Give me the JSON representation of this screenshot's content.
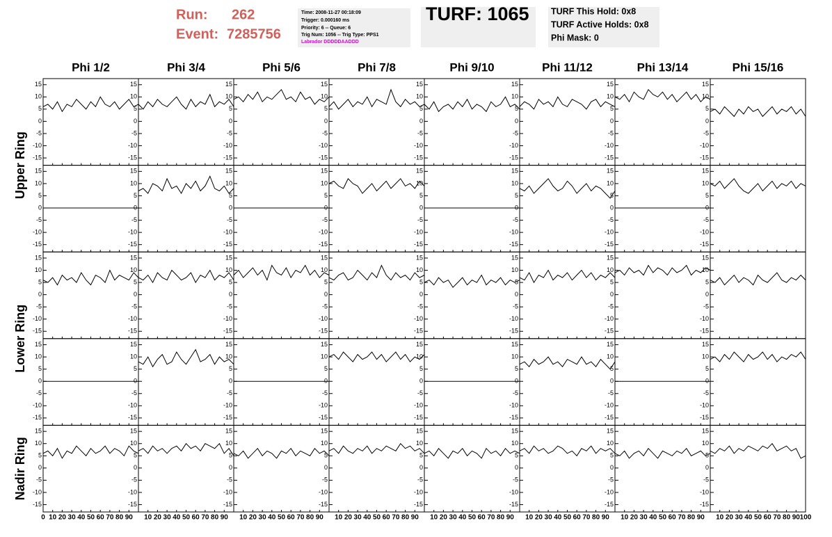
{
  "header": {
    "run_label": "Run:",
    "run": "262",
    "event_label": "Event:",
    "event": "7285756",
    "info": [
      "Time: 2008-11-27 00:18:09",
      "Trigger: 0.000160 ms",
      "Priority: 6 -- Queue: 6",
      "Trig Num: 1056 -- Trig Type: PPS1"
    ],
    "labrador": "Labrador DDDDDAADDD",
    "turf": "TURF: 1065",
    "turf_info": [
      "TURF This Hold: 0x8",
      "TURF Active Holds: 0x8",
      "Phi Mask: 0"
    ]
  },
  "chart_data": {
    "type": "line",
    "color": "#000000",
    "columns": [
      "Phi 1/2",
      "Phi 3/4",
      "Phi 5/6",
      "Phi 7/8",
      "Phi 9/10",
      "Phi 11/12",
      "Phi 13/14",
      "Phi 15/16"
    ],
    "rings": [
      "Upper Ring",
      "Lower Ring",
      "Nadir Ring"
    ],
    "x": [
      0,
      5,
      10,
      15,
      20,
      25,
      30,
      35,
      40,
      45,
      50,
      55,
      60,
      65,
      70,
      75,
      80,
      85,
      90,
      95,
      100
    ],
    "xlim": [
      0,
      100
    ],
    "xticks": [
      0,
      10,
      20,
      30,
      40,
      50,
      60,
      70,
      80,
      90,
      100
    ],
    "ylim": [
      -18,
      17.5
    ],
    "yticks": [
      -15,
      -10,
      -5,
      0,
      5,
      10,
      15
    ],
    "panels": [
      [
        [
          6,
          7,
          5,
          8,
          4,
          7,
          6,
          9,
          7,
          5,
          8,
          6,
          10,
          7,
          6,
          8,
          5,
          7,
          9,
          6,
          7
        ],
        [
          7,
          5,
          8,
          6,
          9,
          7,
          6,
          8,
          10,
          7,
          5,
          9,
          6,
          8,
          7,
          11,
          6,
          8,
          7,
          9,
          6
        ],
        [
          9,
          10,
          8,
          11,
          9,
          12,
          8,
          10,
          9,
          11,
          13,
          9,
          10,
          8,
          12,
          9,
          10,
          7,
          9,
          8,
          10
        ],
        [
          6,
          8,
          5,
          7,
          9,
          6,
          8,
          7,
          10,
          6,
          9,
          8,
          7,
          13,
          8,
          6,
          9,
          7,
          8,
          6,
          7
        ],
        [
          7,
          5,
          8,
          4,
          6,
          7,
          5,
          8,
          6,
          9,
          5,
          7,
          6,
          4,
          8,
          6,
          7,
          10,
          6,
          7,
          5
        ],
        [
          6,
          8,
          7,
          5,
          9,
          7,
          8,
          6,
          10,
          7,
          6,
          9,
          8,
          7,
          5,
          8,
          9,
          6,
          8,
          7,
          6
        ],
        [
          10,
          9,
          11,
          8,
          12,
          10,
          9,
          13,
          11,
          10,
          12,
          9,
          11,
          8,
          10,
          12,
          9,
          11,
          8,
          10,
          9
        ],
        [
          4,
          5,
          3,
          6,
          4,
          2,
          5,
          3,
          6,
          4,
          5,
          2,
          4,
          6,
          3,
          5,
          4,
          6,
          3,
          5,
          2
        ]
      ],
      [
        [
          0,
          0,
          0,
          0,
          0,
          0,
          0,
          0,
          0,
          0,
          0,
          0,
          0,
          0,
          0,
          0,
          0,
          0,
          0,
          0,
          0
        ],
        [
          7,
          8,
          6,
          10,
          9,
          7,
          12,
          8,
          9,
          6,
          10,
          8,
          11,
          7,
          9,
          13,
          8,
          7,
          9,
          6,
          8
        ],
        [
          0,
          0,
          0,
          0,
          0,
          0,
          0,
          0,
          0,
          0,
          0,
          0,
          0,
          0,
          0,
          0,
          0,
          0,
          0,
          0,
          0
        ],
        [
          10,
          11,
          9,
          8,
          12,
          10,
          9,
          6,
          8,
          10,
          7,
          9,
          11,
          8,
          10,
          12,
          9,
          10,
          8,
          11,
          9
        ],
        [
          0,
          0,
          0,
          0,
          0,
          0,
          0,
          0,
          0,
          0,
          0,
          0,
          0,
          0,
          0,
          0,
          0,
          0,
          0,
          0,
          0
        ],
        [
          8,
          7,
          9,
          6,
          8,
          10,
          12,
          9,
          7,
          8,
          11,
          9,
          6,
          8,
          10,
          7,
          9,
          8,
          6,
          4,
          7
        ],
        [
          0,
          0,
          0,
          0,
          0,
          0,
          0,
          0,
          0,
          0,
          0,
          0,
          0,
          0,
          0,
          0,
          0,
          0,
          0,
          0,
          0
        ],
        [
          10,
          9,
          11,
          8,
          10,
          12,
          9,
          7,
          6,
          8,
          10,
          7,
          9,
          11,
          8,
          10,
          9,
          11,
          8,
          10,
          9
        ]
      ],
      [
        [
          6,
          5,
          7,
          4,
          8,
          6,
          7,
          5,
          9,
          6,
          4,
          8,
          7,
          5,
          10,
          6,
          8,
          7,
          6,
          9,
          7
        ],
        [
          7,
          6,
          8,
          5,
          9,
          7,
          6,
          10,
          8,
          6,
          7,
          9,
          5,
          8,
          7,
          10,
          6,
          8,
          7,
          9,
          6
        ],
        [
          8,
          10,
          7,
          9,
          11,
          8,
          10,
          6,
          12,
          9,
          8,
          11,
          7,
          10,
          9,
          12,
          8,
          10,
          7,
          9,
          8
        ],
        [
          7,
          6,
          8,
          9,
          6,
          7,
          10,
          8,
          6,
          9,
          7,
          12,
          8,
          6,
          9,
          7,
          8,
          6,
          9,
          7,
          8
        ],
        [
          5,
          6,
          4,
          7,
          5,
          6,
          3,
          5,
          7,
          4,
          6,
          5,
          8,
          4,
          6,
          5,
          7,
          4,
          6,
          5,
          6
        ],
        [
          7,
          6,
          9,
          5,
          8,
          7,
          10,
          6,
          8,
          7,
          9,
          6,
          8,
          10,
          7,
          9,
          6,
          8,
          7,
          9,
          7
        ],
        [
          9,
          10,
          8,
          11,
          9,
          10,
          8,
          12,
          9,
          11,
          10,
          8,
          11,
          9,
          10,
          12,
          8,
          10,
          9,
          11,
          10
        ],
        [
          6,
          5,
          7,
          4,
          6,
          8,
          5,
          7,
          6,
          4,
          8,
          6,
          5,
          7,
          9,
          6,
          5,
          7,
          6,
          8,
          6
        ]
      ],
      [
        [
          0,
          0,
          0,
          0,
          0,
          0,
          0,
          0,
          0,
          0,
          0,
          0,
          0,
          0,
          0,
          0,
          0,
          0,
          0,
          0,
          0
        ],
        [
          8,
          7,
          10,
          6,
          9,
          11,
          7,
          8,
          12,
          9,
          7,
          10,
          13,
          8,
          9,
          11,
          7,
          10,
          8,
          9,
          7
        ],
        [
          0,
          0,
          0,
          0,
          0,
          0,
          0,
          0,
          0,
          0,
          0,
          0,
          0,
          0,
          0,
          0,
          0,
          0,
          0,
          0,
          0
        ],
        [
          10,
          11,
          9,
          12,
          10,
          8,
          11,
          9,
          10,
          12,
          9,
          11,
          8,
          10,
          12,
          9,
          11,
          8,
          10,
          9,
          11
        ],
        [
          0,
          0,
          0,
          0,
          0,
          0,
          0,
          0,
          0,
          0,
          0,
          0,
          0,
          0,
          0,
          0,
          0,
          0,
          0,
          0,
          0
        ],
        [
          7,
          8,
          6,
          9,
          7,
          8,
          10,
          7,
          8,
          6,
          9,
          8,
          7,
          10,
          7,
          8,
          6,
          9,
          7,
          5,
          8
        ],
        [
          0,
          0,
          0,
          0,
          0,
          0,
          0,
          0,
          0,
          0,
          0,
          0,
          0,
          0,
          0,
          0,
          0,
          0,
          0,
          0,
          0
        ],
        [
          9,
          10,
          8,
          11,
          9,
          12,
          10,
          8,
          11,
          9,
          10,
          12,
          9,
          11,
          8,
          10,
          9,
          11,
          10,
          12,
          9
        ]
      ],
      [
        [
          6,
          7,
          5,
          8,
          4,
          7,
          6,
          9,
          7,
          5,
          8,
          6,
          7,
          9,
          6,
          8,
          7,
          5,
          9,
          7,
          6
        ],
        [
          7,
          8,
          6,
          9,
          7,
          8,
          6,
          8,
          9,
          7,
          10,
          8,
          9,
          7,
          10,
          9,
          8,
          10,
          6,
          8,
          5
        ],
        [
          6,
          5,
          7,
          4,
          6,
          8,
          5,
          7,
          6,
          4,
          7,
          6,
          8,
          5,
          7,
          6,
          5,
          8,
          6,
          7,
          5
        ],
        [
          7,
          8,
          6,
          9,
          7,
          6,
          8,
          7,
          9,
          6,
          8,
          7,
          9,
          8,
          7,
          10,
          8,
          9,
          7,
          8,
          6
        ],
        [
          6,
          7,
          5,
          8,
          6,
          4,
          7,
          6,
          8,
          5,
          7,
          6,
          4,
          8,
          6,
          7,
          5,
          8,
          6,
          7,
          6
        ],
        [
          7,
          8,
          6,
          9,
          7,
          8,
          6,
          7,
          9,
          8,
          6,
          7,
          5,
          8,
          7,
          9,
          6,
          8,
          7,
          8,
          6
        ],
        [
          6,
          5,
          7,
          4,
          6,
          7,
          5,
          8,
          6,
          4,
          7,
          6,
          5,
          7,
          6,
          8,
          5,
          6,
          7,
          5,
          6
        ],
        [
          7,
          6,
          8,
          7,
          9,
          6,
          8,
          7,
          9,
          8,
          7,
          9,
          8,
          10,
          7,
          8,
          9,
          7,
          8,
          4,
          5
        ]
      ]
    ]
  }
}
